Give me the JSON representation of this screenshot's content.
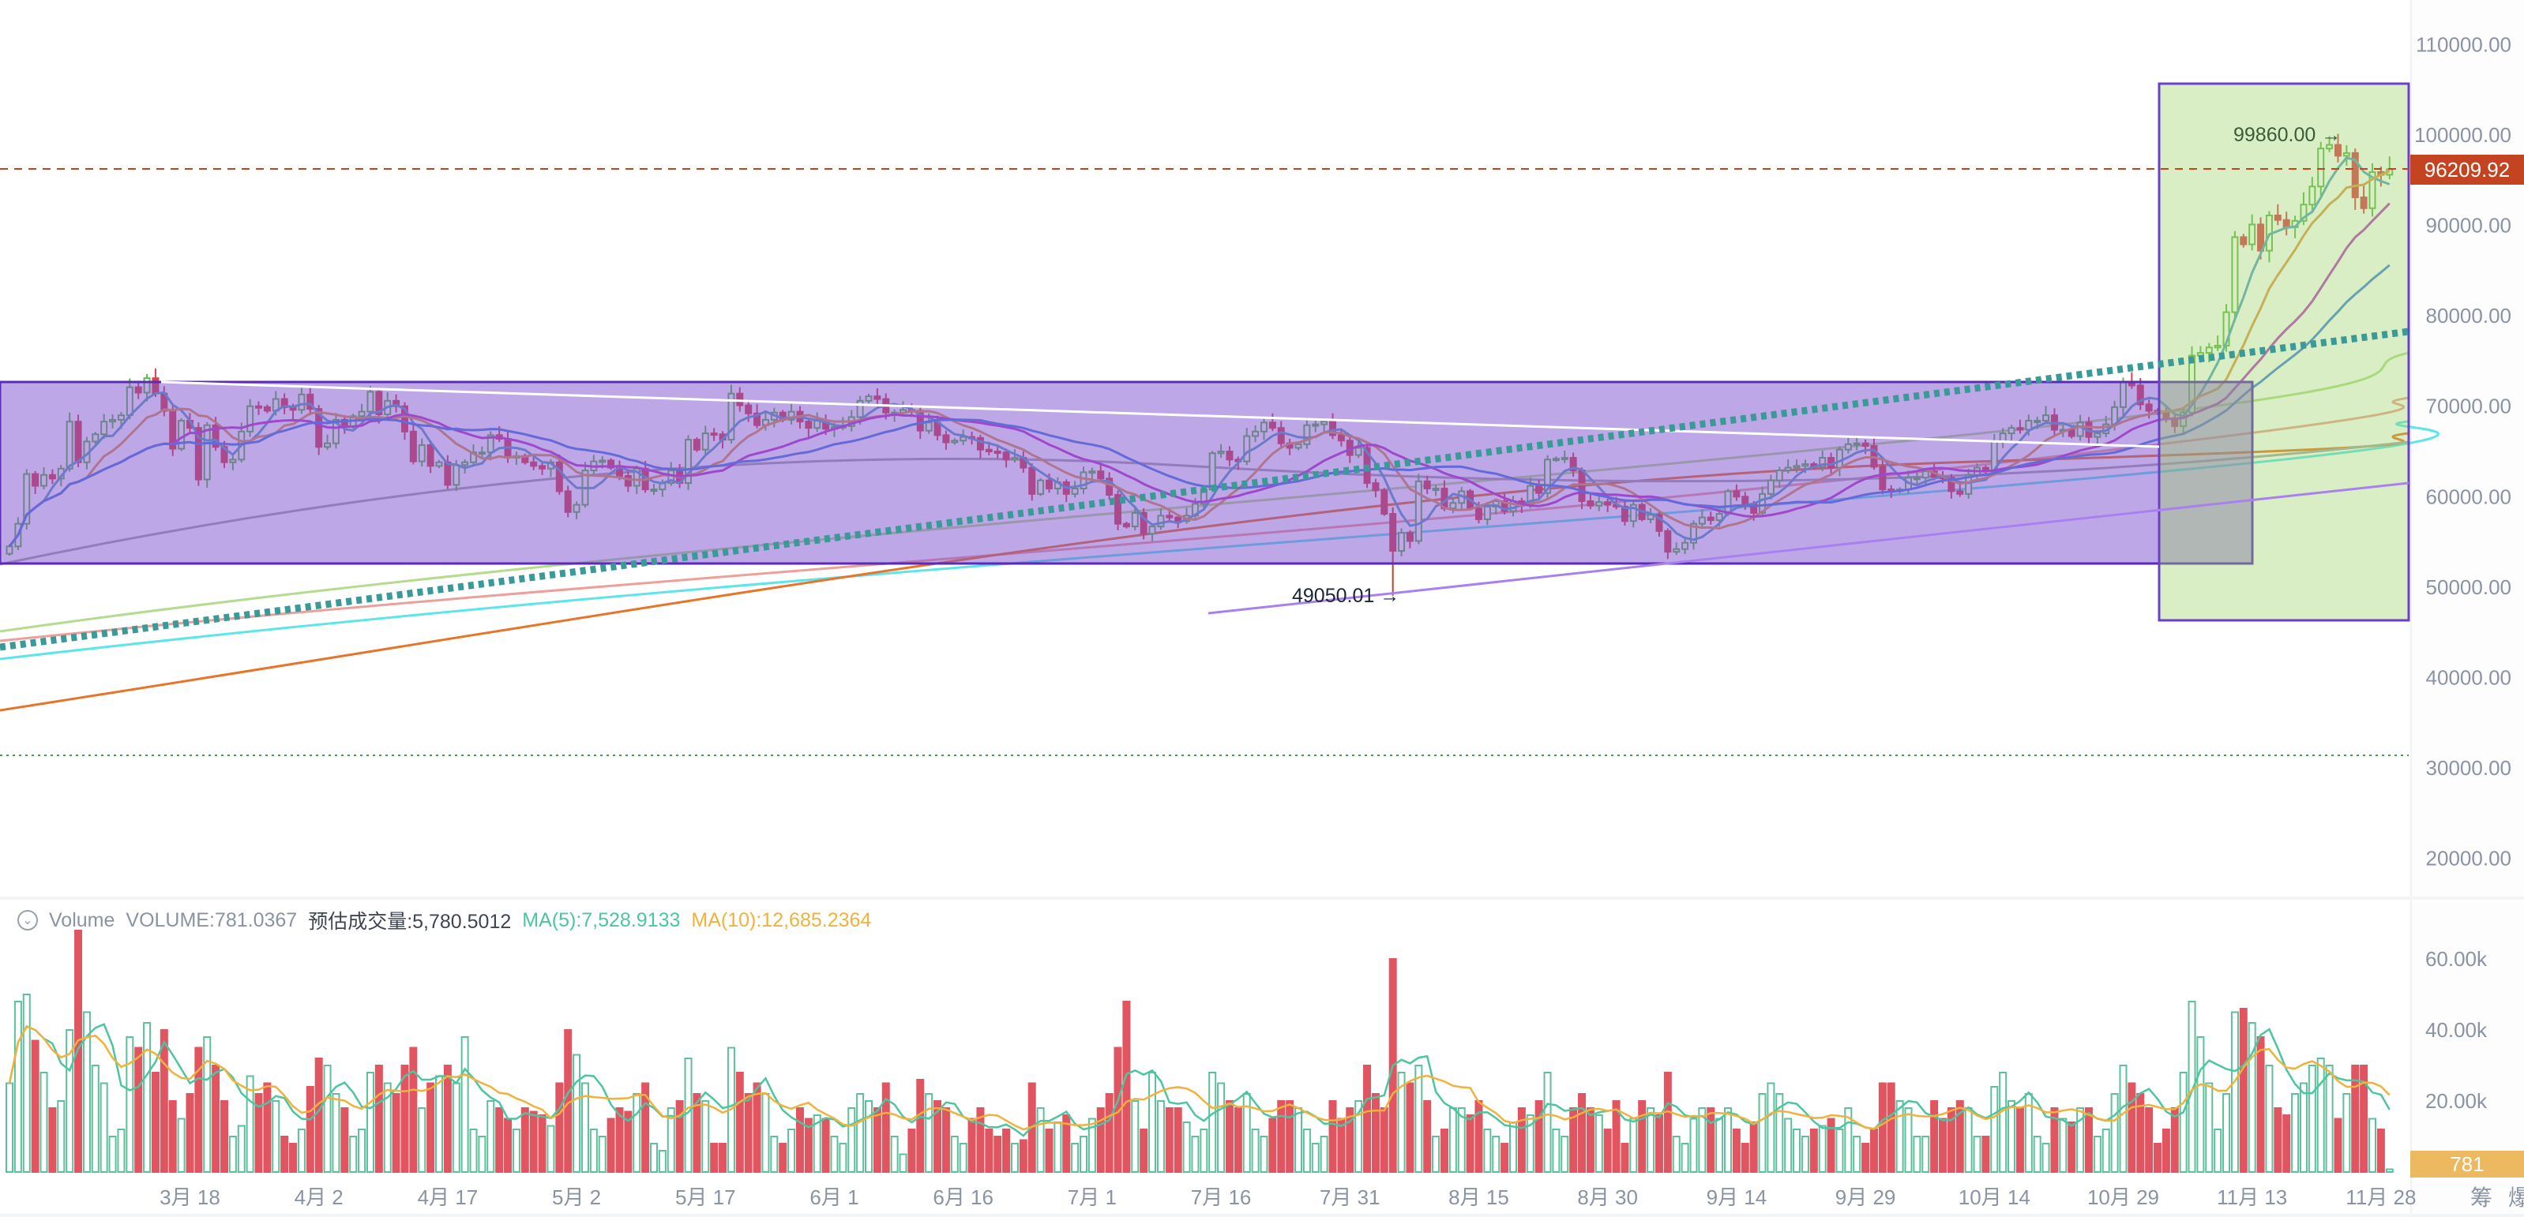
{
  "price_axis": {
    "ticks": [
      "110000.00",
      "100000.00",
      "90000.00",
      "80000.00",
      "70000.00",
      "60000.00",
      "50000.00",
      "40000.00",
      "30000.00",
      "20000.00"
    ],
    "current_price": "96209.92",
    "current_price_color": "#c44421"
  },
  "annotations": {
    "high_label": "99860.00",
    "low_label": "49050.01",
    "arrow": "→"
  },
  "x_axis": {
    "labels": [
      "3月 18",
      "4月 2",
      "4月 17",
      "5月 2",
      "5月 17",
      "6月 1",
      "6月 16",
      "7月 1",
      "7月 16",
      "7月 31",
      "8月 15",
      "8月 30",
      "9月 14",
      "9月 29",
      "10月 14",
      "10月 29",
      "11月 13",
      "11月 28"
    ]
  },
  "volume_panel": {
    "title": "Volume",
    "volume_text": "VOLUME:781.0367",
    "estimated_text": "预估成交量:5,780.5012",
    "ma5_text": "MA(5):7,528.9133",
    "ma10_text": "MA(10):12,685.2364",
    "axis_ticks": [
      "60.00k",
      "40.00k",
      "20.00k"
    ],
    "current_volume": "781",
    "ma5_color": "#4cc6a0",
    "ma10_color": "#f0b23c"
  },
  "bottom_tools": [
    "筹",
    "爆"
  ],
  "colors": {
    "up": "#5fb84a",
    "down": "#d9434f",
    "volume_up": "#5cc09b",
    "volume_down": "#e05560"
  },
  "chart_data": {
    "type": "candlestick",
    "ylim": [
      15000,
      115000
    ],
    "closes": [
      54500,
      57000,
      62500,
      61200,
      62400,
      62000,
      63100,
      68300,
      63800,
      66100,
      66900,
      68300,
      68500,
      69000,
      72100,
      71500,
      73100,
      71400,
      69500,
      65300,
      68400,
      67600,
      61900,
      67900,
      65500,
      63800,
      64100,
      67200,
      70000,
      69900,
      69500,
      70800,
      69900,
      69600,
      71300,
      69700,
      65500,
      65900,
      68500,
      67800,
      68900,
      69400,
      71600,
      69100,
      70600,
      70000,
      67200,
      63900,
      65700,
      63400,
      63800,
      61300,
      63500,
      63800,
      64900,
      64900,
      66800,
      66400,
      64300,
      64500,
      63800,
      63400,
      63100,
      63800,
      60600,
      58300,
      59100,
      62900,
      63900,
      64000,
      63200,
      62300,
      61200,
      63100,
      60800,
      60800,
      61500,
      62900,
      61500,
      66300,
      65200,
      67000,
      66900,
      66300,
      71400,
      70100,
      69200,
      67900,
      68500,
      69300,
      68500,
      69400,
      68300,
      67600,
      68400,
      67500,
      67700,
      67800,
      68800,
      70600,
      71100,
      70800,
      69300,
      69300,
      69600,
      69500,
      67300,
      68200,
      66800,
      66000,
      66200,
      66600,
      66500,
      65200,
      65000,
      64900,
      64100,
      64300,
      63200,
      60300,
      61800,
      60900,
      61600,
      60300,
      60900,
      62700,
      62800,
      62000,
      60200,
      57000,
      56700,
      58200,
      55900,
      56700,
      57900,
      57700,
      57300,
      57900,
      59200,
      60800,
      64800,
      65000,
      64100,
      63900,
      66700,
      67200,
      68200,
      67600,
      65900,
      65400,
      65800,
      67900,
      68000,
      68300,
      66800,
      66200,
      64600,
      65400,
      61500,
      60700,
      58100,
      54000,
      56000,
      55100,
      61700,
      60900,
      60900,
      58700,
      59300,
      60600,
      58700,
      57500,
      58900,
      59500,
      58400,
      59500,
      59000,
      61200,
      60400,
      64100,
      64200,
      64300,
      62900,
      59500,
      59000,
      59400,
      59100,
      58900,
      57300,
      59100,
      57500,
      58000,
      56200,
      53900,
      54200,
      54900,
      57000,
      57700,
      57400,
      58100,
      60600,
      60000,
      59200,
      58200,
      60300,
      61800,
      62900,
      63200,
      63400,
      63600,
      63300,
      64300,
      63200,
      65200,
      65800,
      65900,
      65600,
      63300,
      60800,
      60600,
      60800,
      62100,
      62100,
      62800,
      62200,
      62100,
      60600,
      60300,
      62400,
      63200,
      62800,
      66100,
      67000,
      67600,
      67400,
      68400,
      68400,
      69000,
      67400,
      67400,
      66700,
      68200,
      66600,
      67000,
      68000,
      69900,
      72700,
      72300,
      70200,
      69500,
      69300,
      68700,
      67800,
      69300,
      75600,
      75900,
      76500,
      76700,
      80400,
      88700,
      87900,
      90100,
      87200,
      91100,
      90600,
      89800,
      90500,
      92300,
      94300,
      98500,
      98900,
      97700,
      98000,
      93100,
      91900,
      95900,
      95600,
      96209.92
    ],
    "volumes_k": [
      25,
      48,
      50,
      37,
      28,
      18,
      20,
      40,
      68,
      45,
      30,
      25,
      10,
      12,
      38,
      35,
      42,
      28,
      40,
      20,
      15,
      22,
      35,
      38,
      30,
      20,
      10,
      13,
      27,
      22,
      25,
      20,
      10,
      8,
      12,
      24,
      32,
      30,
      22,
      18,
      10,
      12,
      28,
      30,
      25,
      22,
      30,
      35,
      18,
      25,
      27,
      30,
      25,
      38,
      12,
      10,
      20,
      18,
      15,
      12,
      18,
      17,
      16,
      13,
      25,
      40,
      33,
      25,
      12,
      10,
      15,
      18,
      17,
      22,
      25,
      8,
      6,
      18,
      20,
      32,
      22,
      20,
      8,
      8,
      35,
      28,
      22,
      25,
      22,
      10,
      8,
      12,
      18,
      15,
      16,
      15,
      10,
      8,
      18,
      22,
      20,
      18,
      25,
      10,
      5,
      12,
      26,
      22,
      20,
      18,
      10,
      8,
      15,
      18,
      12,
      10,
      12,
      8,
      9,
      25,
      18,
      12,
      14,
      16,
      8,
      10,
      15,
      18,
      22,
      35,
      48,
      20,
      12,
      28,
      20,
      18,
      18,
      14,
      10,
      12,
      28,
      25,
      20,
      18,
      22,
      12,
      10,
      15,
      20,
      20,
      18,
      12,
      8,
      10,
      20,
      15,
      18,
      20,
      30,
      22,
      18,
      60,
      28,
      25,
      30,
      20,
      10,
      12,
      18,
      18,
      16,
      20,
      12,
      10,
      8,
      14,
      18,
      16,
      20,
      28,
      12,
      10,
      18,
      22,
      18,
      16,
      12,
      20,
      8,
      15,
      20,
      18,
      16,
      28,
      10,
      8,
      15,
      18,
      18,
      15,
      18,
      12,
      8,
      14,
      22,
      25,
      22,
      15,
      12,
      10,
      12,
      13,
      15,
      12,
      18,
      10,
      8,
      12,
      25,
      25,
      20,
      18,
      10,
      10,
      20,
      15,
      18,
      20,
      18,
      10,
      10,
      24,
      28,
      20,
      18,
      22,
      10,
      8,
      18,
      15,
      14,
      18,
      18,
      10,
      12,
      22,
      30,
      25,
      22,
      18,
      8,
      12,
      18,
      28,
      48,
      38,
      25,
      12,
      22,
      45,
      46,
      42,
      38,
      30,
      18,
      16,
      22,
      25,
      30,
      32,
      30,
      15,
      22,
      30,
      30,
      15,
      12,
      0.781
    ],
    "price_high": 99860.0,
    "price_low": 49050.01,
    "moving_averages": [
      5,
      10,
      20,
      30,
      60
    ],
    "volume_moving_averages": [
      5,
      10
    ]
  }
}
